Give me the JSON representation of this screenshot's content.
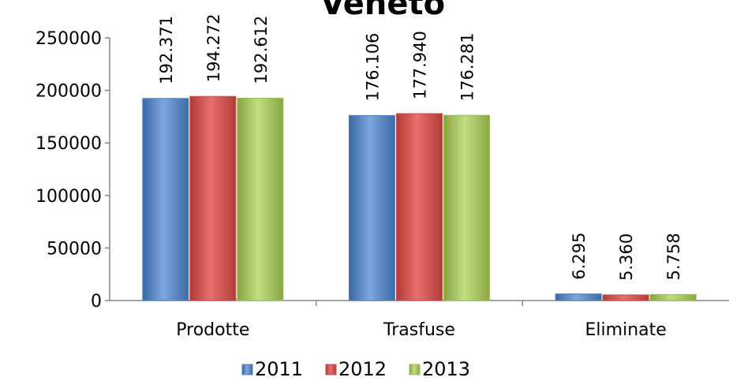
{
  "chart_data": {
    "type": "bar",
    "title": "Veneto",
    "categories": [
      "Prodotte",
      "Trasfuse",
      "Eliminate"
    ],
    "series": [
      {
        "name": "2011",
        "values": [
          192371,
          176106,
          6295
        ],
        "labels": [
          "192.371",
          "176.106",
          "6.295"
        ],
        "color": "#4f81bd"
      },
      {
        "name": "2012",
        "values": [
          194272,
          177940,
          5360
        ],
        "labels": [
          "194.272",
          "177.940",
          "5.360"
        ],
        "color": "#c0504d"
      },
      {
        "name": "2013",
        "values": [
          192612,
          176281,
          5758
        ],
        "labels": [
          "192.612",
          "176.281",
          "5.758"
        ],
        "color": "#9bbb59"
      }
    ],
    "ylim": [
      0,
      250000
    ],
    "yticks": [
      0,
      50000,
      100000,
      150000,
      200000,
      250000
    ],
    "grid": false,
    "legend": "bottom",
    "xlabel": "",
    "ylabel": ""
  }
}
